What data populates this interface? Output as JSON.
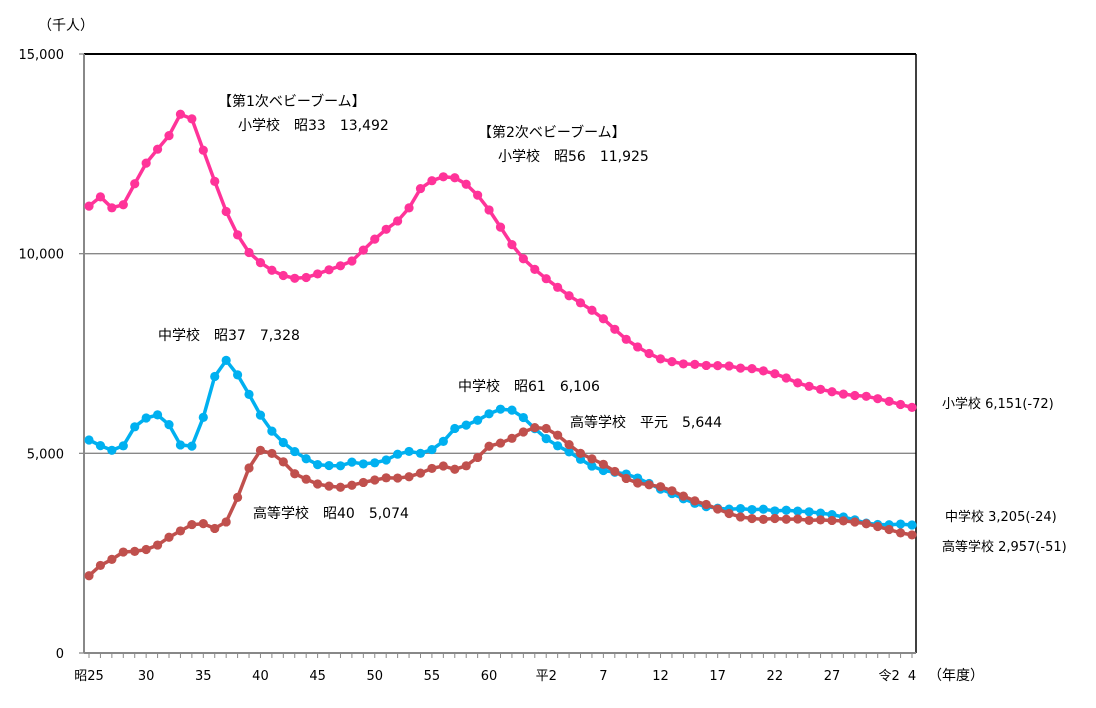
{
  "chart_data": {
    "type": "line",
    "ylabel": "（千人）",
    "xlabel": "（年度）",
    "ylim": [
      0,
      15000
    ],
    "yticks": [
      "0",
      "5,000",
      "10,000",
      "15,000"
    ],
    "ytick_values": [
      0,
      5000,
      10000,
      15000
    ],
    "grid": true,
    "xtick_labels": [
      "昭25",
      "30",
      "35",
      "40",
      "45",
      "50",
      "55",
      "60",
      "平2",
      "7",
      "12",
      "17",
      "22",
      "27",
      "令2",
      "4"
    ],
    "xtick_index": [
      0,
      5,
      10,
      15,
      20,
      25,
      30,
      35,
      40,
      45,
      50,
      55,
      60,
      65,
      70,
      72
    ],
    "x_note": "Fiscal years 昭25 (1950) through 令4 (2022), one point per year",
    "series": [
      {
        "key": "elementary",
        "color": "#ff3399",
        "end_label": "小学校 6,151(-72)",
        "values": [
          11191,
          11423,
          11148,
          11225,
          11750,
          12267,
          12616,
          12956,
          13492,
          13375,
          12591,
          11811,
          11057,
          10471,
          10030,
          9776,
          9584,
          9453,
          9383,
          9404,
          9493,
          9596,
          9696,
          9816,
          10089,
          10365,
          10610,
          10819,
          11147,
          11630,
          11827,
          11925,
          11902,
          11739,
          11465,
          11095,
          10665,
          10227,
          9873,
          9607,
          9373,
          9157,
          8947,
          8769,
          8583,
          8370,
          8106,
          7855,
          7664,
          7500,
          7366,
          7297,
          7239,
          7227,
          7201,
          7197,
          7188,
          7133,
          7122,
          7064,
          6993,
          6887,
          6765,
          6677,
          6601,
          6543,
          6484,
          6449,
          6428,
          6369,
          6301,
          6223,
          6151
        ]
      },
      {
        "key": "junior",
        "color": "#00b0f0",
        "end_label": "中学校 3,205(-24)",
        "values": [
          5333,
          5193,
          5076,
          5188,
          5664,
          5884,
          5963,
          5718,
          5210,
          5180,
          5900,
          6925,
          7328,
          6964,
          6476,
          5957,
          5556,
          5271,
          5044,
          4865,
          4717,
          4694,
          4688,
          4779,
          4735,
          4762,
          4833,
          4978,
          5048,
          5000,
          5094,
          5300,
          5623,
          5706,
          5828,
          5990,
          6106,
          6082,
          5896,
          5619,
          5369,
          5188,
          5037,
          4850,
          4681,
          4571,
          4527,
          4481,
          4381,
          4244,
          4104,
          3992,
          3863,
          3748,
          3664,
          3626,
          3602,
          3615,
          3592,
          3601,
          3558,
          3574,
          3553,
          3536,
          3504,
          3465,
          3406,
          3333,
          3252,
          3218,
          3211,
          3229,
          3205
        ]
      },
      {
        "key": "high",
        "color": "#c0504d",
        "end_label": "高等学校 2,957(-51)",
        "values": [
          1935,
          2193,
          2344,
          2528,
          2545,
          2592,
          2703,
          2898,
          3057,
          3216,
          3239,
          3119,
          3282,
          3897,
          4634,
          5074,
          4998,
          4786,
          4489,
          4352,
          4232,
          4178,
          4150,
          4201,
          4271,
          4333,
          4387,
          4381,
          4414,
          4504,
          4622,
          4682,
          4601,
          4687,
          4897,
          5178,
          5257,
          5376,
          5534,
          5644,
          5623,
          5455,
          5218,
          4999,
          4862,
          4725,
          4547,
          4371,
          4258,
          4212,
          4165,
          4062,
          3929,
          3810,
          3719,
          3605,
          3494,
          3407,
          3367,
          3347,
          3369,
          3349,
          3355,
          3320,
          3334,
          3319,
          3309,
          3280,
          3236,
          3168,
          3092,
          3008,
          2957
        ]
      }
    ],
    "annotations": {
      "boom1_title": "【第1次ベビーブーム】",
      "boom1_value": "小学校　昭33　13,492",
      "boom2_title": "【第2次ベビーブーム】",
      "boom2_value": "小学校　昭56　11,925",
      "junior_peak1": "中学校　昭37　7,328",
      "junior_peak2": "中学校　昭61　6,106",
      "high_peak1": "高等学校　昭40　5,074",
      "high_peak2": "高等学校　平元　5,644"
    }
  }
}
